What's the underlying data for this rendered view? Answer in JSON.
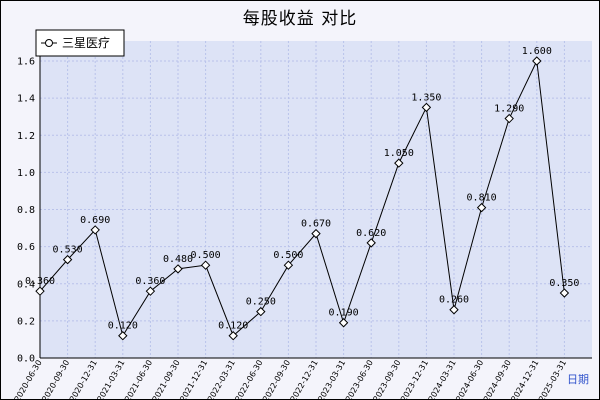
{
  "chart_data": {
    "type": "line",
    "title": "每股收益  对比",
    "xlabel": "日期",
    "ylabel": "",
    "ylim": [
      0,
      1.6
    ],
    "yticks": [
      "0.0",
      "0.2",
      "0.4",
      "0.6",
      "0.8",
      "1.0",
      "1.2",
      "1.4",
      "1.6"
    ],
    "grid": true,
    "legend_position": "top-left",
    "categories": [
      "2020-06-30",
      "2020-09-30",
      "2020-12-31",
      "2021-03-31",
      "2021-06-30",
      "2021-09-30",
      "2021-12-31",
      "2022-03-31",
      "2022-06-30",
      "2022-09-30",
      "2022-12-31",
      "2023-03-31",
      "2023-06-30",
      "2023-09-30",
      "2023-12-31",
      "2024-03-31",
      "2024-06-30",
      "2024-09-30",
      "2024-12-31",
      "2025-03-31"
    ],
    "series": [
      {
        "name": "三星医疗",
        "values": [
          0.36,
          0.53,
          0.69,
          0.12,
          0.36,
          0.48,
          0.5,
          0.12,
          0.25,
          0.5,
          0.67,
          0.19,
          0.62,
          1.05,
          1.35,
          0.26,
          0.81,
          1.29,
          1.6,
          0.35
        ],
        "labels": [
          "0.360",
          "0.530",
          "0.690",
          "0.120",
          "0.360",
          "0.480",
          "0.500",
          "0.120",
          "0.250",
          "0.500",
          "0.670",
          "0.190",
          "0.620",
          "1.050",
          "1.350",
          "0.260",
          "0.810",
          "1.290",
          "1.600",
          "0.350"
        ]
      }
    ],
    "colors": {
      "plot_bg": "#dde3f6",
      "grid": "#b9c2ea",
      "line": "#000000",
      "marker_fill": "#ffffff",
      "axis_title": "#3355cc"
    }
  }
}
